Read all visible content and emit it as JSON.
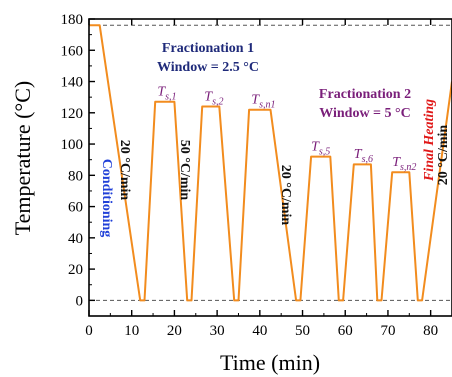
{
  "chart_data": {
    "type": "line",
    "xlabel": "Time (min)",
    "ylabel": "Temperature (°C)",
    "xlim": [
      0,
      85
    ],
    "ylim": [
      -10,
      180
    ],
    "xticks": [
      0,
      10,
      20,
      30,
      40,
      50,
      60,
      70,
      80
    ],
    "yticks": [
      0,
      20,
      40,
      60,
      80,
      100,
      120,
      140,
      160,
      180
    ],
    "reference_lines": [
      176,
      0
    ],
    "colors": {
      "line": "#f28c1e",
      "ref": "#555555",
      "navy": "#1f2a7a",
      "purple": "#7a1f7a",
      "blue": "#2040d8",
      "red": "#e01818",
      "black": "#111111"
    },
    "series": [
      {
        "x": [
          0,
          2.5,
          12,
          13,
          15.5,
          20,
          23,
          24,
          26.5,
          30.5,
          34,
          35,
          37.5,
          42.5,
          48.5,
          49.5,
          52,
          56.5,
          58.5,
          59.5,
          62,
          66,
          67.5,
          68.5,
          71,
          75,
          77,
          78,
          85
        ],
        "y": [
          176,
          176,
          0,
          0,
          127,
          127,
          0,
          0,
          124,
          124,
          0,
          0,
          122,
          122,
          0,
          0,
          92,
          92,
          0,
          0,
          87,
          87,
          0,
          0,
          82,
          82,
          0,
          0,
          140
        ]
      }
    ],
    "annotations": {
      "frac1_title": "Fractionation 1",
      "frac1_window": "Window = 2.5 °C",
      "frac2_title": "Fractionation 2",
      "frac2_window": "Window = 5 °C",
      "rate1": "20 °C/min",
      "rate2": "50 °C/min",
      "rate3": "20 °C/min",
      "rate4": "20 °C/min",
      "conditioning": "Conditioning",
      "final_heating": "Final Heating",
      "ts_labels": [
        {
          "base": "T",
          "sub": "s,1",
          "x": 16,
          "y": 131
        },
        {
          "base": "T",
          "sub": "s,2",
          "x": 27,
          "y": 128
        },
        {
          "base": "T",
          "sub": "s,n1",
          "x": 38,
          "y": 126
        },
        {
          "base": "T",
          "sub": "s,5",
          "x": 52,
          "y": 96
        },
        {
          "base": "T",
          "sub": "s,6",
          "x": 62,
          "y": 91
        },
        {
          "base": "T",
          "sub": "s,n2",
          "x": 71,
          "y": 86
        }
      ]
    }
  }
}
